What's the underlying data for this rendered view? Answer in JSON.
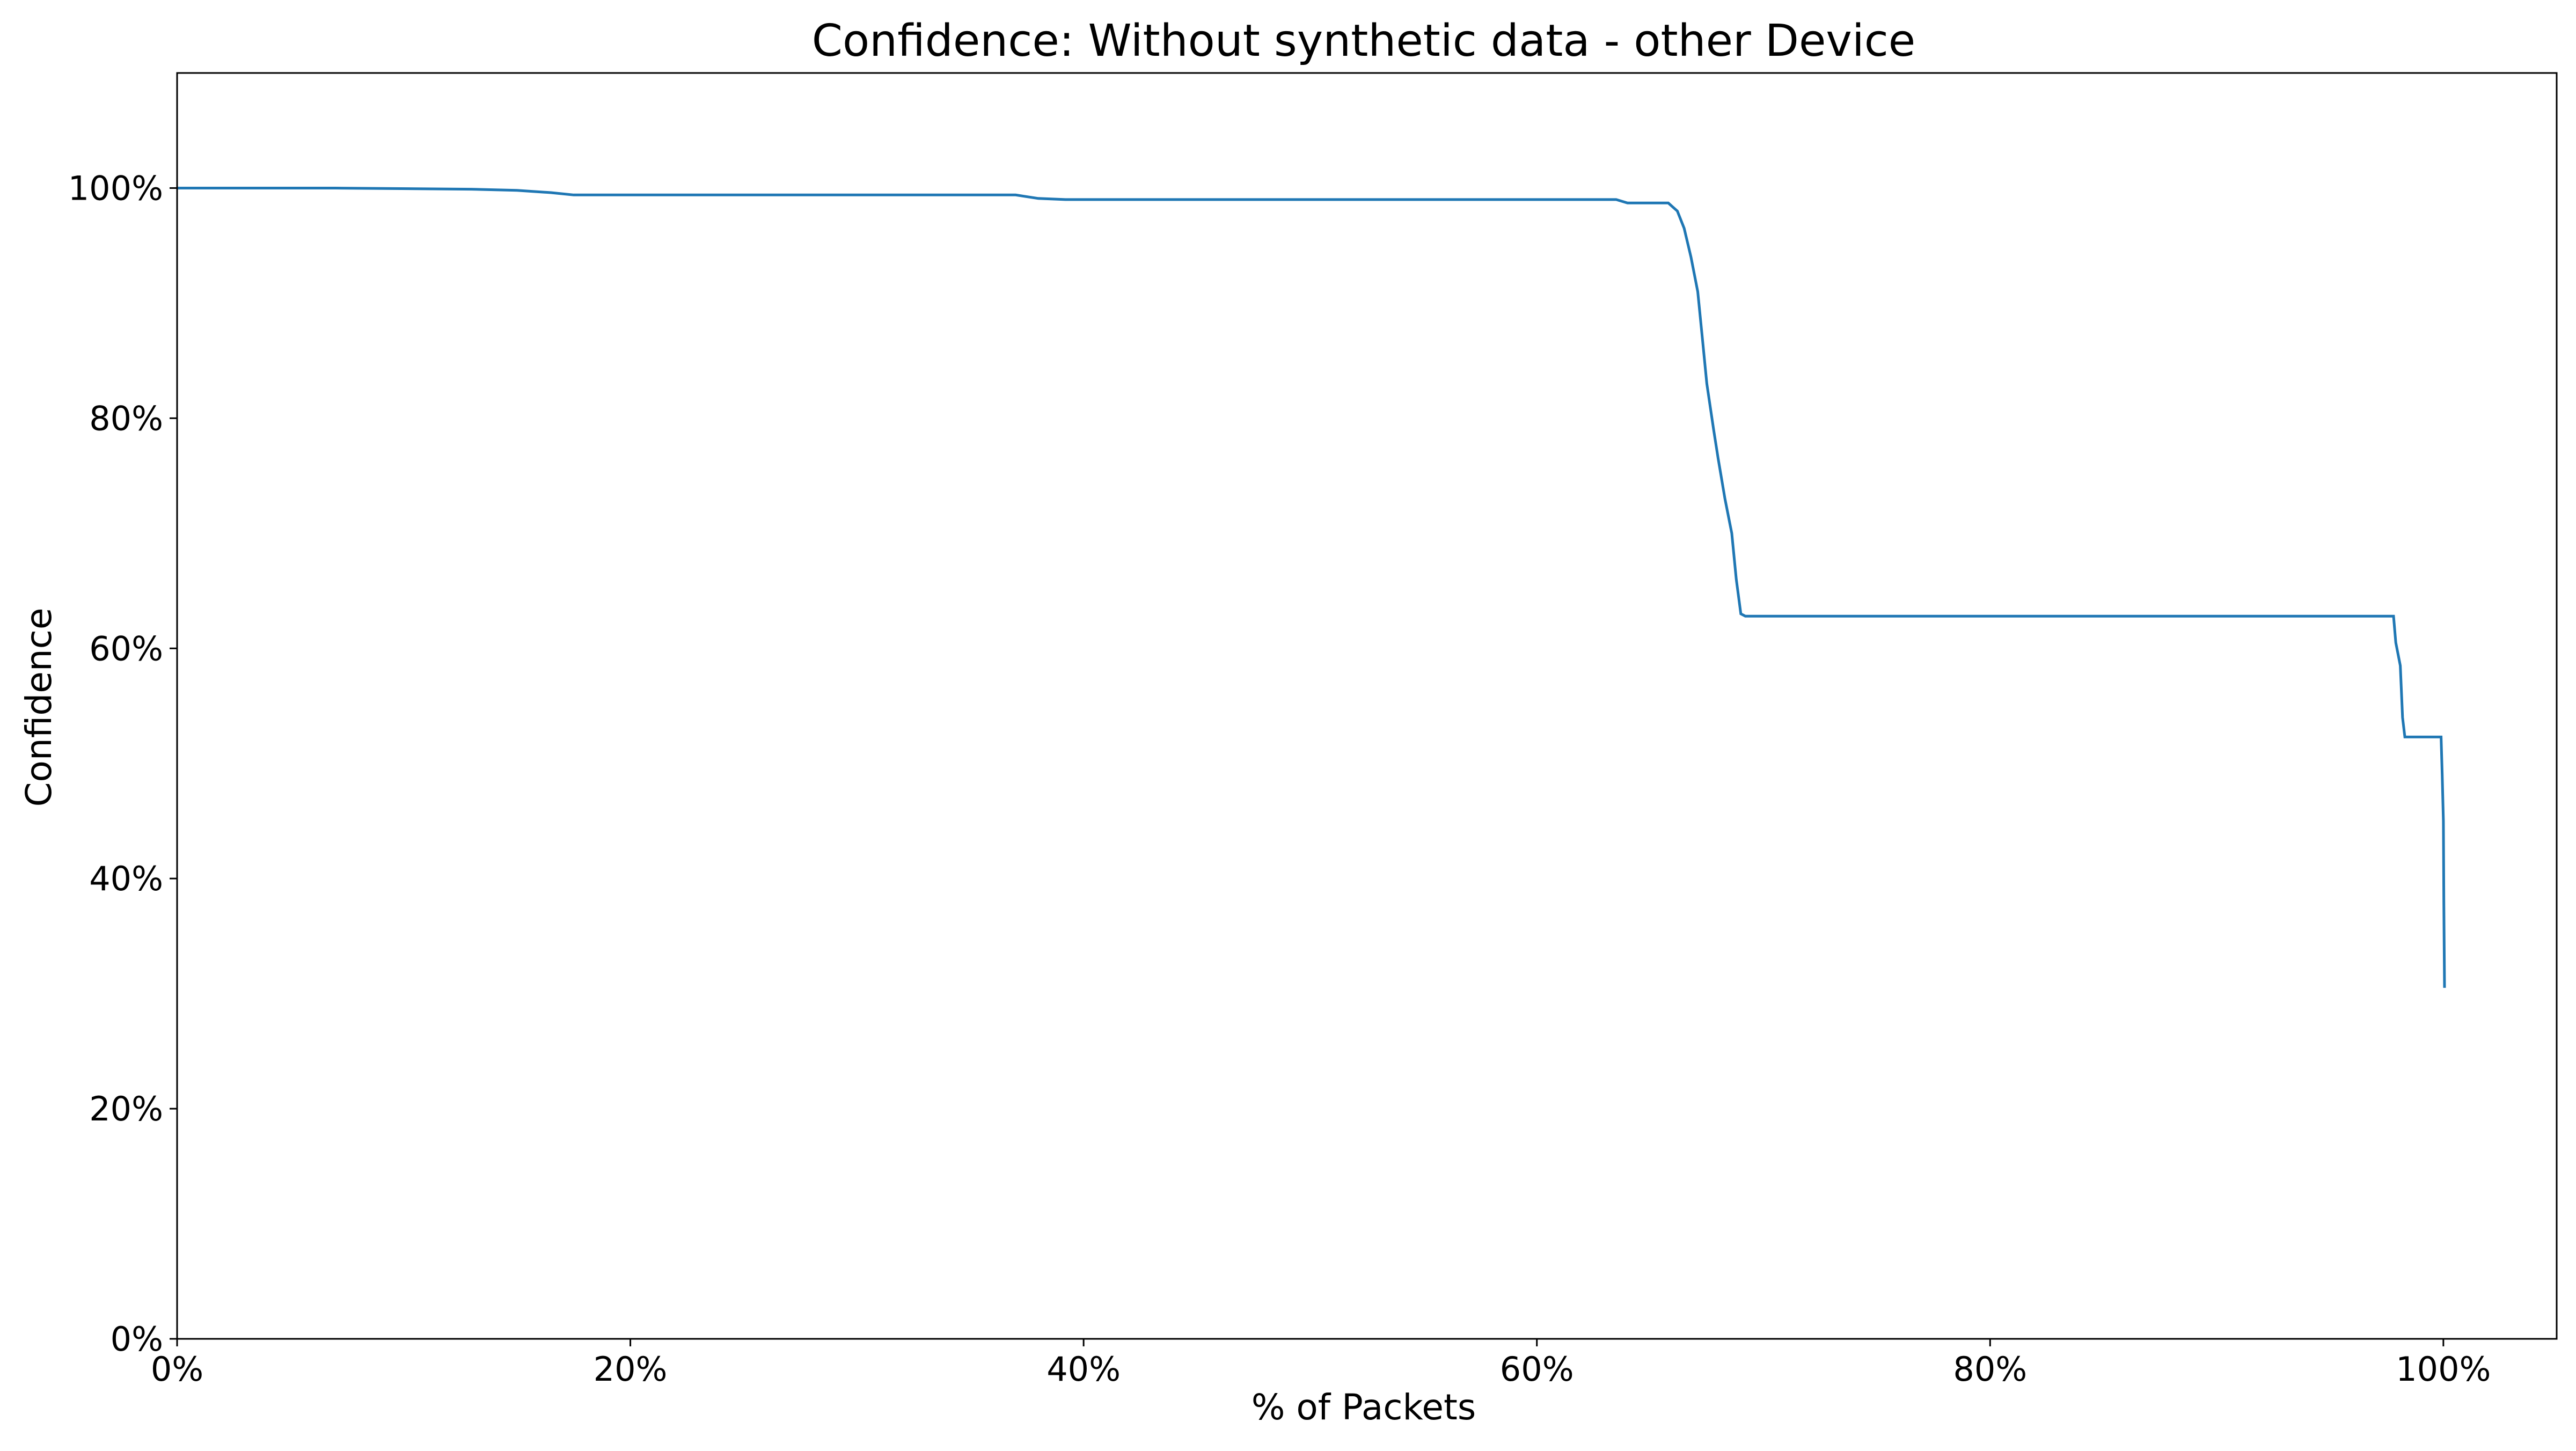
{
  "chart_data": {
    "type": "line",
    "title": "Confidence: Without synthetic data - other Device",
    "xlabel": "% of Packets",
    "ylabel": "Confidence",
    "xlim": [
      0,
      105
    ],
    "ylim": [
      0,
      110
    ],
    "x_ticks": [
      0,
      20,
      40,
      60,
      80,
      100
    ],
    "x_tick_labels": [
      "0%",
      "20%",
      "40%",
      "60%",
      "80%",
      "100%"
    ],
    "y_ticks": [
      0,
      20,
      40,
      60,
      80,
      100
    ],
    "y_tick_labels": [
      "0%",
      "20%",
      "40%",
      "60%",
      "80%",
      "100%"
    ],
    "grid": false,
    "series": [
      {
        "color": "#1f77b4",
        "x": [
          0,
          7,
          13,
          15,
          16.5,
          17.5,
          37.0,
          38.0,
          39.2,
          40,
          63.5,
          64.0,
          65.8,
          66.2,
          66.5,
          66.8,
          67.1,
          67.3,
          67.5,
          67.8,
          68.0,
          68.3,
          68.6,
          68.8,
          69.0,
          69.2,
          69.5,
          97.8,
          97.9,
          98.1,
          98.2,
          98.3,
          99.9,
          99.95,
          100.0,
          100.02,
          100.05
        ],
        "y": [
          100,
          100,
          99.9,
          99.8,
          99.6,
          99.4,
          99.4,
          99.1,
          99.0,
          99.0,
          99.0,
          98.7,
          98.7,
          98.0,
          96.5,
          94.0,
          91.0,
          87.0,
          83.0,
          79.0,
          76.5,
          73.0,
          70.0,
          66.0,
          63.0,
          62.8,
          62.8,
          62.8,
          60.5,
          58.5,
          54.0,
          52.3,
          52.3,
          49.0,
          45.0,
          38.0,
          30.5
        ]
      }
    ]
  }
}
